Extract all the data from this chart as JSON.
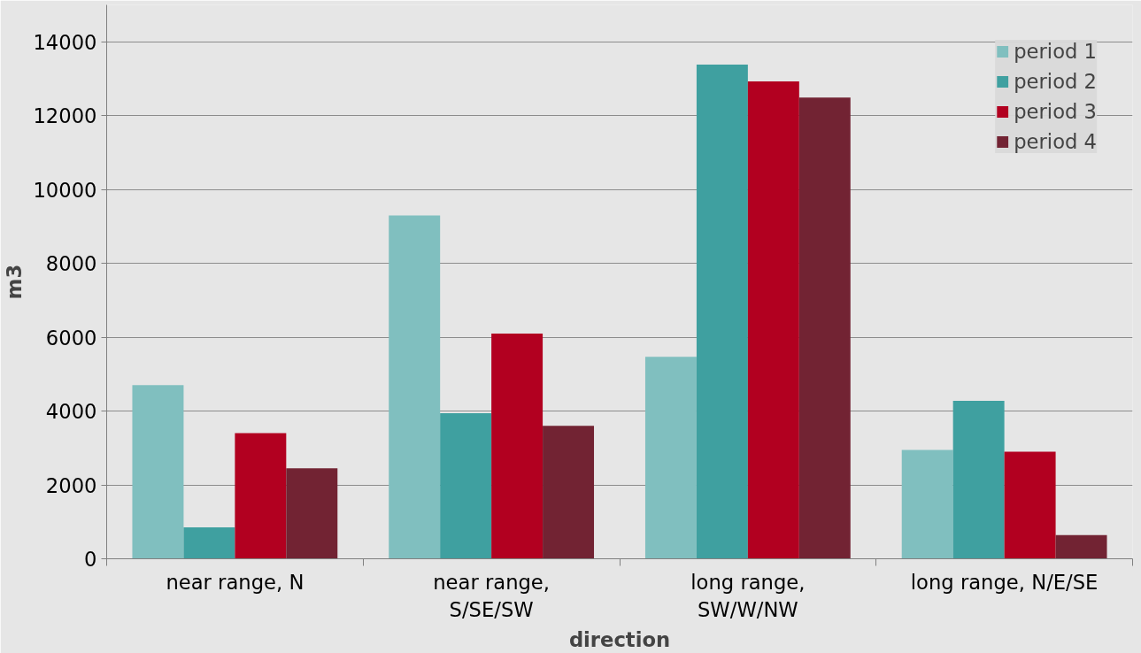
{
  "chart_data": {
    "type": "bar",
    "xlabel": "direction",
    "ylabel": "m3",
    "categories": [
      "near range, N",
      "near range, S/SE/SW",
      "long range, SW/W/NW",
      "long range, N/E/SE"
    ],
    "series": [
      {
        "name": "period 1",
        "color": "#80bfbf",
        "values": [
          4700,
          9300,
          5470,
          2950
        ]
      },
      {
        "name": "period 2",
        "color": "#3fa0a0",
        "values": [
          850,
          3940,
          13380,
          4280
        ]
      },
      {
        "name": "period 3",
        "color": "#b20020",
        "values": [
          3400,
          6100,
          12930,
          2900
        ]
      },
      {
        "name": "period 4",
        "color": "#722333",
        "values": [
          2450,
          3600,
          12490,
          640
        ]
      }
    ],
    "ylim": [
      0,
      15000
    ],
    "yticks": [
      0,
      2000,
      4000,
      6000,
      8000,
      10000,
      12000,
      14000
    ],
    "grid": "y",
    "legend": "top right"
  }
}
